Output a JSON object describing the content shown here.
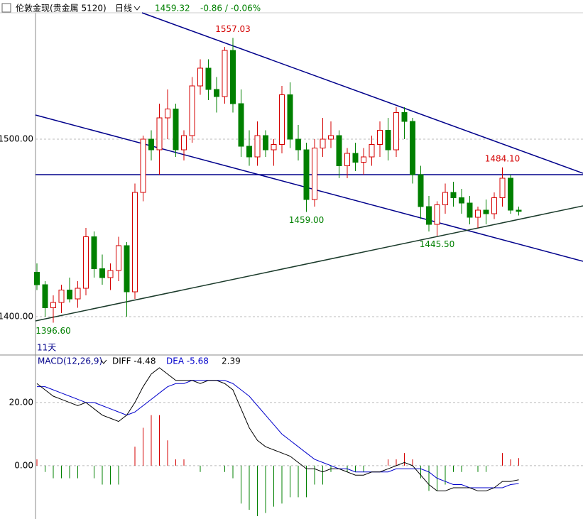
{
  "header": {
    "symbol": "伦敦金现(贵金属 5120)",
    "period": "日线",
    "price": "1459.32",
    "change": "-0.86 / -0.06%"
  },
  "chart_data": [
    {
      "type": "candlestick",
      "ylim": [
        1378.4,
        1571.2
      ],
      "yticks": [
        {
          "value": 1400,
          "label": "1400.00"
        },
        {
          "value": 1500,
          "label": "1500.00"
        }
      ],
      "up_color": "#d40000",
      "down_color": "#008000",
      "annotations": [
        "1557.03",
        "1459.00",
        "1445.50",
        "1484.10",
        "1396.60"
      ],
      "period_label": "11天",
      "candles": [
        [
          1425,
          1430,
          1415,
          1418
        ],
        [
          1418,
          1420,
          1400,
          1405
        ],
        [
          1405,
          1412,
          1396.6,
          1408
        ],
        [
          1408,
          1418,
          1402,
          1415
        ],
        [
          1415,
          1422,
          1408,
          1410
        ],
        [
          1410,
          1420,
          1405,
          1416
        ],
        [
          1416,
          1450,
          1412,
          1445
        ],
        [
          1445,
          1448,
          1422,
          1427
        ],
        [
          1427,
          1435,
          1418,
          1422
        ],
        [
          1422,
          1430,
          1415,
          1426
        ],
        [
          1426,
          1445,
          1420,
          1440
        ],
        [
          1440,
          1442,
          1400,
          1414
        ],
        [
          1414,
          1475,
          1410,
          1470
        ],
        [
          1470,
          1502,
          1465,
          1500
        ],
        [
          1500,
          1505,
          1488,
          1494
        ],
        [
          1494,
          1520,
          1480,
          1512
        ],
        [
          1512,
          1528,
          1500,
          1517
        ],
        [
          1517,
          1520,
          1490,
          1494
        ],
        [
          1494,
          1505,
          1488,
          1502
        ],
        [
          1502,
          1535,
          1498,
          1530
        ],
        [
          1530,
          1545,
          1525,
          1540
        ],
        [
          1540,
          1545,
          1522,
          1528
        ],
        [
          1528,
          1535,
          1515,
          1524
        ],
        [
          1524,
          1552,
          1520,
          1550
        ],
        [
          1550,
          1557.03,
          1515,
          1520
        ],
        [
          1520,
          1528,
          1490,
          1496
        ],
        [
          1496,
          1505,
          1485,
          1490
        ],
        [
          1490,
          1510,
          1485,
          1502
        ],
        [
          1502,
          1505,
          1490,
          1494
        ],
        [
          1494,
          1500,
          1485,
          1497
        ],
        [
          1497,
          1530,
          1492,
          1525
        ],
        [
          1525,
          1532,
          1495,
          1500
        ],
        [
          1500,
          1508,
          1488,
          1494
        ],
        [
          1494,
          1498,
          1459,
          1466
        ],
        [
          1466,
          1500,
          1462,
          1495
        ],
        [
          1495,
          1512,
          1490,
          1500
        ],
        [
          1500,
          1510,
          1495,
          1502
        ],
        [
          1502,
          1505,
          1478,
          1485
        ],
        [
          1485,
          1495,
          1478,
          1492
        ],
        [
          1492,
          1498,
          1482,
          1487
        ],
        [
          1487,
          1495,
          1480,
          1490
        ],
        [
          1490,
          1502,
          1485,
          1497
        ],
        [
          1497,
          1510,
          1490,
          1505
        ],
        [
          1505,
          1512,
          1488,
          1494
        ],
        [
          1494,
          1518,
          1490,
          1515
        ],
        [
          1515,
          1518,
          1500,
          1510
        ],
        [
          1510,
          1512,
          1475,
          1480
        ],
        [
          1480,
          1485,
          1455,
          1462
        ],
        [
          1462,
          1468,
          1448,
          1452
        ],
        [
          1452,
          1465,
          1445.5,
          1463
        ],
        [
          1463,
          1475,
          1458,
          1470
        ],
        [
          1470,
          1476,
          1462,
          1467
        ],
        [
          1467,
          1472,
          1458,
          1464
        ],
        [
          1464,
          1468,
          1452,
          1456
        ],
        [
          1456,
          1462,
          1450,
          1460
        ],
        [
          1460,
          1466,
          1452,
          1458
        ],
        [
          1458,
          1470,
          1455,
          1467
        ],
        [
          1467,
          1484.1,
          1462,
          1478
        ],
        [
          1478,
          1480,
          1458,
          1460
        ],
        [
          1460,
          1462,
          1457,
          1459.32
        ]
      ]
    },
    {
      "type": "macd",
      "title": "MACD(12,26,9)",
      "ylim": [
        -16.9,
        31
      ],
      "yticks": [
        {
          "value": 0,
          "label": "0.00"
        },
        {
          "value": 20,
          "label": "20.00"
        }
      ],
      "diff_label": "DIFF -4.48",
      "dea_label": "DEA -5.68",
      "hist_label": "2.39",
      "diff_color": "#000000",
      "dea_color": "#0000cc",
      "up_color": "#d40000",
      "down_color": "#008000",
      "diff": [
        26,
        24,
        22,
        21,
        20,
        19,
        20,
        18,
        16,
        15,
        14,
        16,
        20,
        25,
        29,
        31,
        29,
        27,
        27,
        27,
        26,
        27,
        27,
        26,
        24,
        18,
        12,
        8,
        6,
        5,
        4,
        3,
        1,
        -1,
        -1,
        -2,
        -1,
        -1,
        -2,
        -3,
        -3,
        -2,
        -2,
        -1,
        0,
        1,
        0,
        -3,
        -6,
        -8,
        -8,
        -7,
        -7,
        -7,
        -8,
        -8,
        -7,
        -5,
        -5,
        -4.48
      ],
      "dea": [
        25,
        25,
        24,
        23,
        22,
        21,
        20,
        20,
        19,
        18,
        17,
        16,
        17,
        19,
        21,
        23,
        25,
        26,
        26,
        27,
        27,
        27,
        27,
        27,
        26,
        24,
        22,
        19,
        16,
        13,
        10,
        8,
        6,
        4,
        2,
        1,
        0,
        -1,
        -1,
        -2,
        -2,
        -2,
        -2,
        -2,
        -1,
        -1,
        -1,
        -1,
        -2,
        -4,
        -5,
        -6,
        -6,
        -7,
        -7,
        -7,
        -7,
        -7,
        -6,
        -5.68
      ],
      "hist": [
        2,
        -2,
        -4,
        -4,
        -4,
        -4,
        0,
        -4,
        -6,
        -6,
        -6,
        0,
        6,
        12,
        16,
        16,
        8,
        2,
        2,
        0,
        -2,
        0,
        0,
        -2,
        -4,
        -12,
        -14,
        -16,
        -15,
        -13,
        -12,
        -10,
        -10,
        -10,
        -6,
        -6,
        -2,
        0,
        -2,
        -2,
        -2,
        0,
        0,
        2,
        2,
        4,
        2,
        -4,
        -8,
        -8,
        -6,
        -2,
        -2,
        0,
        -2,
        -2,
        0,
        4,
        2,
        2.39
      ]
    }
  ]
}
